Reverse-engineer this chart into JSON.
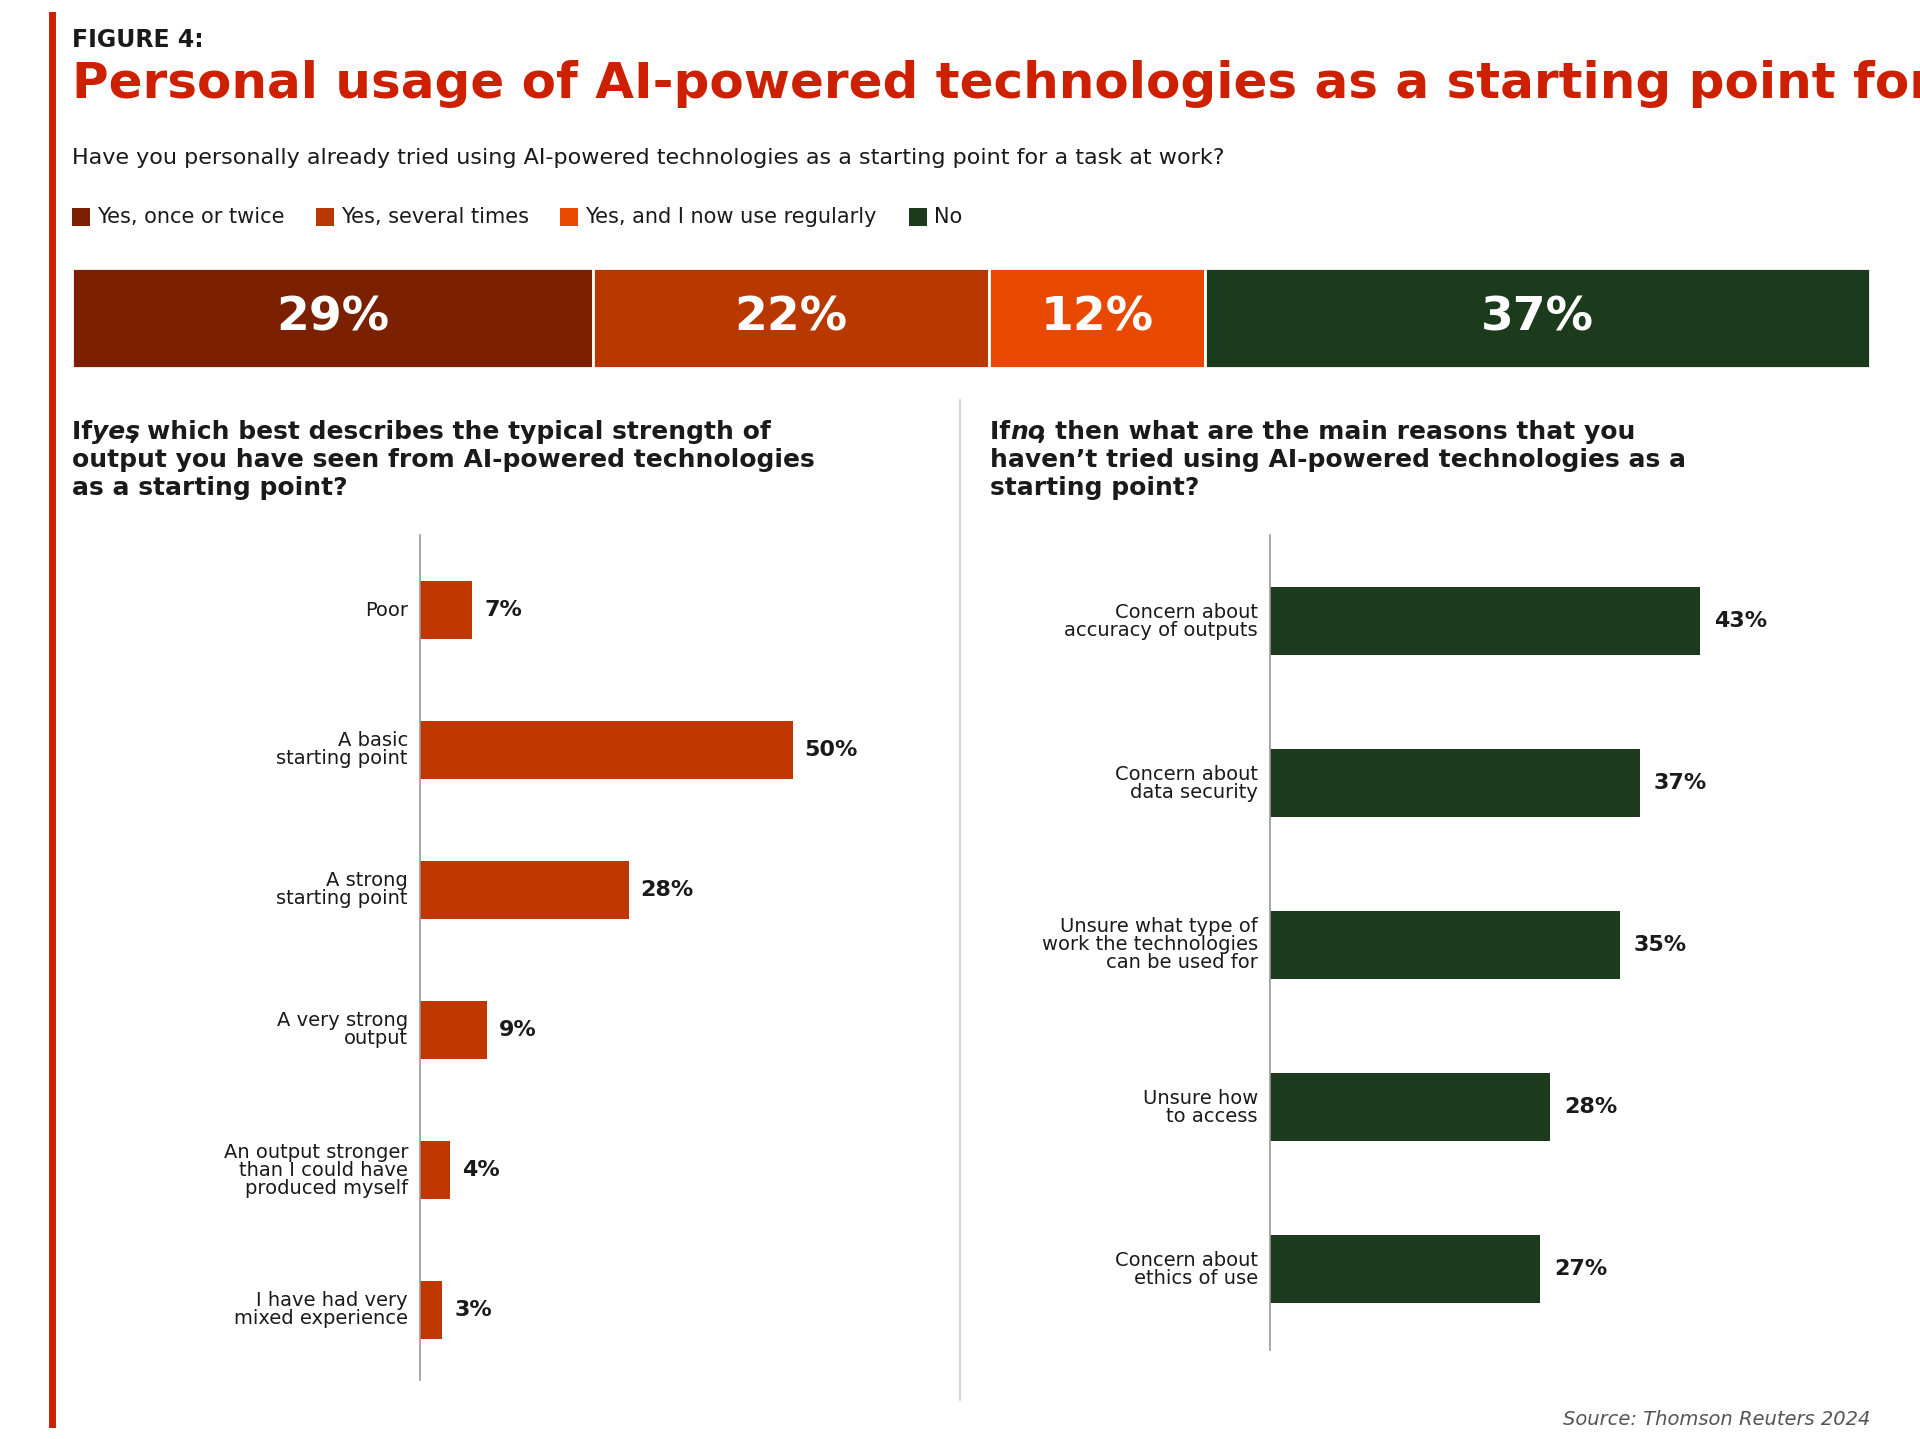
{
  "figure_label": "FIGURE 4:",
  "title": "Personal usage of AI-powered technologies as a starting point for work",
  "subtitle": "Have you personally already tried using AI-powered technologies as a starting point for a task at work?",
  "legend_items": [
    {
      "label": "Yes, once or twice",
      "color": "#7B2000"
    },
    {
      "label": "Yes, several times",
      "color": "#B83800"
    },
    {
      "label": "Yes, and I now use regularly",
      "color": "#E84800"
    },
    {
      "label": "No",
      "color": "#1C3A1C"
    }
  ],
  "stacked_bar": {
    "values": [
      29,
      22,
      12,
      37
    ],
    "colors": [
      "#7B2000",
      "#B83800",
      "#E84800",
      "#1C3A1C"
    ],
    "labels": [
      "29%",
      "22%",
      "12%",
      "37%"
    ]
  },
  "left_question_parts": [
    {
      "text": "If ",
      "italic": false,
      "bold": true
    },
    {
      "text": "yes",
      "italic": true,
      "bold": true
    },
    {
      "text": ", which best describes the typical strength of\noutput you have seen from AI-powered technologies\nas a starting point?",
      "italic": false,
      "bold": true
    }
  ],
  "left_bars": {
    "categories": [
      "Poor",
      "A basic\nstarting point",
      "A strong\nstarting point",
      "A very strong\noutput",
      "An output stronger\nthan I could have\nproduced myself",
      "I have had very\nmixed experience"
    ],
    "values": [
      7,
      50,
      28,
      9,
      4,
      3
    ],
    "color": "#C03800"
  },
  "right_question_parts": [
    {
      "text": "If ",
      "italic": false,
      "bold": true
    },
    {
      "text": "no",
      "italic": true,
      "bold": true
    },
    {
      "text": ", then what are the main reasons that you\nhaven’t tried using AI-powered technologies as a\nstarting point?",
      "italic": false,
      "bold": true
    }
  ],
  "right_bars": {
    "categories": [
      "Concern about\naccuracy of outputs",
      "Concern about\ndata security",
      "Unsure what type of\nwork the technologies\ncan be used for",
      "Unsure how\nto access",
      "Concern about\nethics of use"
    ],
    "values": [
      43,
      37,
      35,
      28,
      27
    ],
    "color": "#1C3A1C"
  },
  "source": "Source: Thomson Reuters 2024",
  "bg_color": "#FFFFFF",
  "accent_color": "#CC2000",
  "text_color": "#1A1A1A"
}
